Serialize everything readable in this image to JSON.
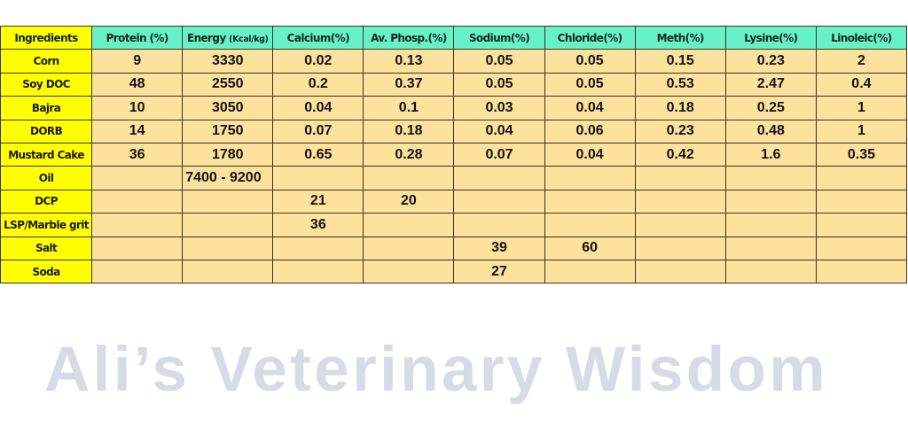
{
  "colors": {
    "ingredient_bg": "#ffff00",
    "header_bg": "#66f2c6",
    "cell_bg": "#fde29d",
    "watermark": "#d5dce5"
  },
  "table": {
    "headers": [
      {
        "label": "Ingredients",
        "unit": ""
      },
      {
        "label": "Protein (%)",
        "unit": ""
      },
      {
        "label": "Energy ",
        "unit": "(Kcal/kg)"
      },
      {
        "label": "Calcium(%)",
        "unit": ""
      },
      {
        "label": "Av. Phosp.(%)",
        "unit": ""
      },
      {
        "label": "Sodium(%)",
        "unit": ""
      },
      {
        "label": "Chloride(%)",
        "unit": ""
      },
      {
        "label": "Meth(%)",
        "unit": ""
      },
      {
        "label": "Lysine(%)",
        "unit": ""
      },
      {
        "label": "Linoleic(%)",
        "unit": ""
      }
    ],
    "rows": [
      {
        "ingredient": "Corn",
        "values": [
          "9",
          "3330",
          "0.02",
          "0.13",
          "0.05",
          "0.05",
          "0.15",
          "0.23",
          "2"
        ]
      },
      {
        "ingredient": "Soy DOC",
        "values": [
          "48",
          "2550",
          "0.2",
          "0.37",
          "0.05",
          "0.05",
          "0.53",
          "2.47",
          "0.4"
        ]
      },
      {
        "ingredient": "Bajra",
        "values": [
          "10",
          "3050",
          "0.04",
          "0.1",
          "0.03",
          "0.04",
          "0.18",
          "0.25",
          "1"
        ]
      },
      {
        "ingredient": "DORB",
        "values": [
          "14",
          "1750",
          "0.07",
          "0.18",
          "0.04",
          "0.06",
          "0.23",
          "0.48",
          "1"
        ]
      },
      {
        "ingredient": "Mustard Cake",
        "values": [
          "36",
          "1780",
          "0.65",
          "0.28",
          "0.07",
          "0.04",
          "0.42",
          "1.6",
          "0.35"
        ]
      },
      {
        "ingredient": "Oil",
        "values": [
          "",
          "7400 - 9200",
          "",
          "",
          "",
          "",
          "",
          "",
          ""
        ]
      },
      {
        "ingredient": "DCP",
        "values": [
          "",
          "",
          "21",
          "20",
          "",
          "",
          "",
          "",
          ""
        ]
      },
      {
        "ingredient": "LSP/Marble grit",
        "values": [
          "",
          "",
          "36",
          "",
          "",
          "",
          "",
          "",
          ""
        ]
      },
      {
        "ingredient": "Salt",
        "values": [
          "",
          "",
          "",
          "",
          "39",
          "60",
          "",
          "",
          ""
        ]
      },
      {
        "ingredient": "Soda",
        "values": [
          "",
          "",
          "",
          "",
          "27",
          "",
          "",
          "",
          ""
        ]
      }
    ]
  },
  "watermark": {
    "text": "Ali’s Veterinary Wisdom"
  }
}
